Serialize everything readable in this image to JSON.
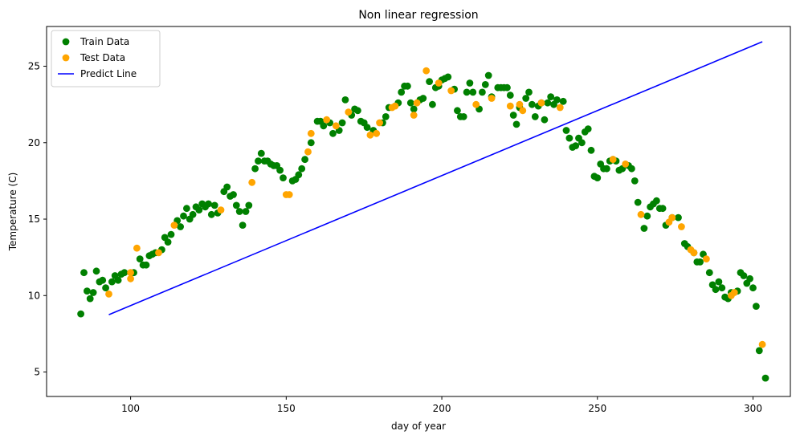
{
  "chart_data": {
    "type": "scatter",
    "title": "Non linear regression",
    "xlabel": "day of year",
    "ylabel": "Temperature (C)",
    "xlim": [
      73,
      312
    ],
    "ylim": [
      3.4,
      27.6
    ],
    "xticks": [
      100,
      150,
      200,
      250,
      300
    ],
    "yticks": [
      5,
      10,
      15,
      20,
      25
    ],
    "grid": false,
    "legend_position": "top-left",
    "series": [
      {
        "name": "Train Data",
        "kind": "scatter",
        "color": "#008000",
        "points": [
          [
            84,
            8.8
          ],
          [
            85,
            11.5
          ],
          [
            86,
            10.3
          ],
          [
            87,
            9.8
          ],
          [
            88,
            10.2
          ],
          [
            89,
            11.6
          ],
          [
            90,
            10.9
          ],
          [
            91,
            11.0
          ],
          [
            92,
            10.5
          ],
          [
            94,
            10.9
          ],
          [
            95,
            11.3
          ],
          [
            96,
            11.0
          ],
          [
            97,
            11.4
          ],
          [
            98,
            11.5
          ],
          [
            101,
            11.5
          ],
          [
            103,
            12.4
          ],
          [
            104,
            12.0
          ],
          [
            105,
            12.0
          ],
          [
            106,
            12.6
          ],
          [
            107,
            12.7
          ],
          [
            108,
            12.8
          ],
          [
            110,
            13.0
          ],
          [
            111,
            13.8
          ],
          [
            112,
            13.5
          ],
          [
            113,
            14.0
          ],
          [
            115,
            14.9
          ],
          [
            116,
            14.5
          ],
          [
            117,
            15.2
          ],
          [
            118,
            15.7
          ],
          [
            119,
            15.0
          ],
          [
            120,
            15.3
          ],
          [
            121,
            15.8
          ],
          [
            122,
            15.6
          ],
          [
            123,
            16.0
          ],
          [
            124,
            15.8
          ],
          [
            125,
            16.0
          ],
          [
            126,
            15.3
          ],
          [
            127,
            15.9
          ],
          [
            128,
            15.4
          ],
          [
            130,
            16.8
          ],
          [
            131,
            17.1
          ],
          [
            132,
            16.5
          ],
          [
            133,
            16.6
          ],
          [
            134,
            15.9
          ],
          [
            135,
            15.5
          ],
          [
            136,
            14.6
          ],
          [
            137,
            15.5
          ],
          [
            138,
            15.9
          ],
          [
            140,
            18.3
          ],
          [
            141,
            18.8
          ],
          [
            142,
            19.3
          ],
          [
            143,
            18.8
          ],
          [
            144,
            18.8
          ],
          [
            145,
            18.6
          ],
          [
            146,
            18.5
          ],
          [
            147,
            18.5
          ],
          [
            148,
            18.2
          ],
          [
            149,
            17.7
          ],
          [
            152,
            17.5
          ],
          [
            153,
            17.6
          ],
          [
            154,
            17.9
          ],
          [
            155,
            18.3
          ],
          [
            156,
            18.9
          ],
          [
            158,
            20.0
          ],
          [
            160,
            21.4
          ],
          [
            161,
            21.4
          ],
          [
            162,
            21.1
          ],
          [
            164,
            21.3
          ],
          [
            165,
            20.6
          ],
          [
            167,
            20.8
          ],
          [
            168,
            21.3
          ],
          [
            169,
            22.8
          ],
          [
            171,
            21.8
          ],
          [
            172,
            22.2
          ],
          [
            173,
            22.1
          ],
          [
            174,
            21.4
          ],
          [
            175,
            21.3
          ],
          [
            176,
            21.0
          ],
          [
            178,
            20.8
          ],
          [
            181,
            21.3
          ],
          [
            182,
            21.7
          ],
          [
            183,
            22.3
          ],
          [
            186,
            22.6
          ],
          [
            187,
            23.3
          ],
          [
            188,
            23.7
          ],
          [
            189,
            23.7
          ],
          [
            190,
            22.6
          ],
          [
            191,
            22.2
          ],
          [
            193,
            22.8
          ],
          [
            194,
            22.9
          ],
          [
            196,
            24.0
          ],
          [
            197,
            22.5
          ],
          [
            198,
            23.6
          ],
          [
            199,
            23.7
          ],
          [
            200,
            24.1
          ],
          [
            201,
            24.2
          ],
          [
            202,
            24.3
          ],
          [
            204,
            23.5
          ],
          [
            205,
            22.1
          ],
          [
            206,
            21.7
          ],
          [
            207,
            21.7
          ],
          [
            208,
            23.3
          ],
          [
            209,
            23.9
          ],
          [
            210,
            23.3
          ],
          [
            212,
            22.2
          ],
          [
            213,
            23.3
          ],
          [
            214,
            23.8
          ],
          [
            215,
            24.4
          ],
          [
            216,
            23.0
          ],
          [
            218,
            23.6
          ],
          [
            219,
            23.6
          ],
          [
            220,
            23.6
          ],
          [
            221,
            23.6
          ],
          [
            222,
            23.1
          ],
          [
            223,
            21.8
          ],
          [
            224,
            21.2
          ],
          [
            225,
            22.3
          ],
          [
            227,
            22.9
          ],
          [
            228,
            23.3
          ],
          [
            229,
            22.5
          ],
          [
            230,
            21.7
          ],
          [
            231,
            22.4
          ],
          [
            232,
            22.6
          ],
          [
            233,
            21.5
          ],
          [
            234,
            22.6
          ],
          [
            235,
            23.0
          ],
          [
            236,
            22.5
          ],
          [
            237,
            22.8
          ],
          [
            239,
            22.7
          ],
          [
            240,
            20.8
          ],
          [
            241,
            20.3
          ],
          [
            242,
            19.7
          ],
          [
            243,
            19.8
          ],
          [
            244,
            20.3
          ],
          [
            245,
            20.0
          ],
          [
            246,
            20.7
          ],
          [
            247,
            20.9
          ],
          [
            248,
            19.5
          ],
          [
            249,
            17.8
          ],
          [
            250,
            17.7
          ],
          [
            251,
            18.6
          ],
          [
            252,
            18.3
          ],
          [
            253,
            18.3
          ],
          [
            254,
            18.8
          ],
          [
            255,
            18.9
          ],
          [
            256,
            18.8
          ],
          [
            257,
            18.2
          ],
          [
            258,
            18.3
          ],
          [
            260,
            18.5
          ],
          [
            261,
            18.3
          ],
          [
            262,
            17.5
          ],
          [
            263,
            16.1
          ],
          [
            265,
            14.4
          ],
          [
            266,
            15.2
          ],
          [
            267,
            15.8
          ],
          [
            268,
            16.0
          ],
          [
            269,
            16.2
          ],
          [
            270,
            15.7
          ],
          [
            271,
            15.7
          ],
          [
            272,
            14.6
          ],
          [
            274,
            15.1
          ],
          [
            276,
            15.1
          ],
          [
            278,
            13.4
          ],
          [
            279,
            13.2
          ],
          [
            281,
            12.8
          ],
          [
            282,
            12.2
          ],
          [
            283,
            12.2
          ],
          [
            284,
            12.7
          ],
          [
            286,
            11.5
          ],
          [
            287,
            10.7
          ],
          [
            288,
            10.4
          ],
          [
            289,
            10.9
          ],
          [
            290,
            10.5
          ],
          [
            291,
            9.9
          ],
          [
            292,
            9.8
          ],
          [
            293,
            10.2
          ],
          [
            295,
            10.3
          ],
          [
            296,
            11.5
          ],
          [
            297,
            11.3
          ],
          [
            298,
            10.8
          ],
          [
            299,
            11.1
          ],
          [
            300,
            10.5
          ],
          [
            301,
            9.3
          ],
          [
            302,
            6.4
          ],
          [
            304,
            4.6
          ]
        ]
      },
      {
        "name": "Test Data",
        "kind": "scatter",
        "color": "#ffa500",
        "points": [
          [
            93,
            10.1
          ],
          [
            100,
            11.5
          ],
          [
            100,
            11.1
          ],
          [
            102,
            13.1
          ],
          [
            109,
            12.8
          ],
          [
            114,
            14.6
          ],
          [
            129,
            15.6
          ],
          [
            139,
            17.4
          ],
          [
            150,
            16.6
          ],
          [
            151,
            16.6
          ],
          [
            157,
            19.4
          ],
          [
            158,
            20.6
          ],
          [
            163,
            21.5
          ],
          [
            166,
            21.1
          ],
          [
            170,
            22.0
          ],
          [
            177,
            20.5
          ],
          [
            179,
            20.6
          ],
          [
            180,
            21.3
          ],
          [
            184,
            22.3
          ],
          [
            185,
            22.4
          ],
          [
            191,
            21.8
          ],
          [
            192,
            22.6
          ],
          [
            195,
            24.7
          ],
          [
            199,
            23.9
          ],
          [
            203,
            23.4
          ],
          [
            211,
            22.5
          ],
          [
            216,
            22.9
          ],
          [
            222,
            22.4
          ],
          [
            225,
            22.5
          ],
          [
            226,
            22.1
          ],
          [
            232,
            22.6
          ],
          [
            238,
            22.3
          ],
          [
            255,
            18.9
          ],
          [
            259,
            18.6
          ],
          [
            264,
            15.3
          ],
          [
            273,
            14.8
          ],
          [
            274,
            15.1
          ],
          [
            277,
            14.5
          ],
          [
            280,
            13.0
          ],
          [
            281,
            12.8
          ],
          [
            285,
            12.4
          ],
          [
            293,
            10.0
          ],
          [
            294,
            10.2
          ],
          [
            303,
            6.8
          ]
        ]
      },
      {
        "name": "Predict Line",
        "kind": "line",
        "color": "#0000ff",
        "points": [
          [
            93,
            8.75
          ],
          [
            303,
            26.6
          ]
        ]
      }
    ]
  }
}
